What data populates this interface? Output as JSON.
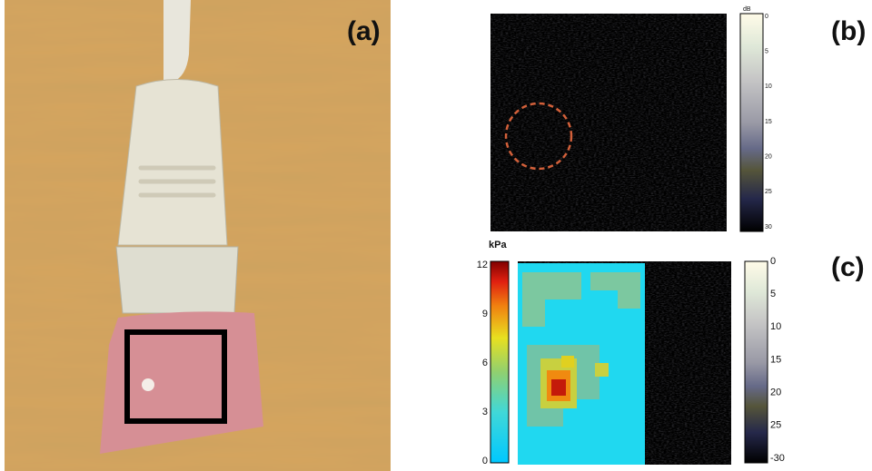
{
  "panels": [
    {
      "label": "(a)"
    },
    {
      "label": "(b)",
      "colorbar": {
        "unit": "dB",
        "ticks": [
          0,
          5,
          10,
          15,
          20,
          25,
          30
        ]
      }
    },
    {
      "label": "(c)",
      "colorbar": {
        "unit": "kPa",
        "ticks": [
          12,
          9,
          6,
          3,
          0
        ]
      },
      "colorbar_right": {
        "ticks": [
          0,
          5,
          10,
          15,
          20,
          25,
          -30
        ]
      }
    }
  ]
}
